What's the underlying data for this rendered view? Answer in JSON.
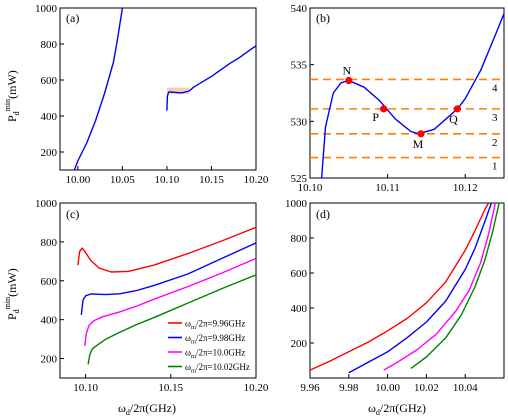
{
  "figure": {
    "y_label_main": "P",
    "y_label_sub": "d",
    "y_label_sup": "min",
    "y_label_unit": "(mW)",
    "x_label_main": "ω",
    "x_label_sub": "d",
    "x_label_unit": "/2π(GHz)"
  },
  "colors": {
    "blue": "#0000ff",
    "red": "#ff0000",
    "magenta": "#ff00ff",
    "green": "#008000",
    "orange": "#ff8000",
    "highlight": "#f4c49a",
    "point": "#ff0000"
  },
  "chart_data": [
    {
      "panel": "(a)",
      "type": "line",
      "xlim": [
        9.98,
        10.2
      ],
      "ylim": [
        100,
        1000
      ],
      "xticks": [
        10.0,
        10.05,
        10.1,
        10.15,
        10.2
      ],
      "xticklabels": [
        "10.00",
        "10.05",
        "10.10",
        "10.15",
        "10.20"
      ],
      "yticks": [
        200,
        400,
        600,
        800,
        1000
      ],
      "series": [
        {
          "color": "blue",
          "x": [
            9.996,
            10.0,
            10.01,
            10.02,
            10.03,
            10.04,
            10.045,
            10.05
          ],
          "y": [
            100,
            150,
            250,
            375,
            525,
            700,
            840,
            1000
          ]
        },
        {
          "color": "blue",
          "x": [
            10.1,
            10.1005,
            10.102,
            10.105,
            10.11,
            10.114,
            10.119,
            10.125,
            10.13,
            10.14,
            10.15,
            10.16,
            10.17,
            10.18,
            10.19,
            10.2
          ],
          "y": [
            430,
            510,
            533,
            533.6,
            531,
            529,
            531,
            539,
            560,
            590,
            620,
            655,
            690,
            720,
            755,
            790
          ]
        }
      ],
      "highlight_box": {
        "x": [
          10.1,
          10.125
        ],
        "y": [
          522,
          558
        ]
      }
    },
    {
      "panel": "(b)",
      "type": "line",
      "xlim": [
        10.1,
        10.125
      ],
      "ylim": [
        525,
        540
      ],
      "xticks": [
        10.1,
        10.11,
        10.12
      ],
      "xticklabels": [
        "10.10",
        "10.11",
        "10.12"
      ],
      "yticks": [
        525,
        530,
        535,
        540
      ],
      "series": [
        {
          "color": "blue",
          "x": [
            10.1015,
            10.102,
            10.103,
            10.104,
            10.105,
            10.107,
            10.109,
            10.111,
            10.113,
            10.114,
            10.116,
            10.118,
            10.119,
            10.12,
            10.122,
            10.124,
            10.125
          ],
          "y": [
            525,
            529.5,
            532.5,
            533.4,
            533.6,
            533.0,
            531.8,
            530.2,
            529.1,
            528.9,
            529.3,
            530.5,
            531.1,
            532.0,
            534.5,
            537.8,
            539.5
          ]
        }
      ],
      "hlines": [
        533.7,
        531.1,
        528.9,
        526.8
      ],
      "hline_labels": [
        "4",
        "3",
        "2",
        "1"
      ],
      "points": [
        {
          "label": "N",
          "x": 10.105,
          "y": 533.6
        },
        {
          "label": "P",
          "x": 10.1095,
          "y": 531.1
        },
        {
          "label": "M",
          "x": 10.1143,
          "y": 528.9
        },
        {
          "label": "Q",
          "x": 10.119,
          "y": 531.1
        }
      ]
    },
    {
      "panel": "(c)",
      "type": "line",
      "xlim": [
        10.085,
        10.2
      ],
      "ylim": [
        100,
        1000
      ],
      "xticks": [
        10.1,
        10.15,
        10.2
      ],
      "xticklabels": [
        "10.10",
        "10.15",
        "10.20"
      ],
      "yticks": [
        200,
        400,
        600,
        800,
        1000
      ],
      "legend": [
        {
          "label": "ω",
          "sub": "m",
          "rest": "/2π=9.96GHz",
          "color": "red"
        },
        {
          "label": "ω",
          "sub": "m",
          "rest": "/2π=9.98GHz",
          "color": "blue"
        },
        {
          "label": "ω",
          "sub": "m",
          "rest": "/2π=10.0GHz",
          "color": "magenta"
        },
        {
          "label": "ω",
          "sub": "m",
          "rest": "/2π=10.02GHz",
          "color": "green"
        }
      ],
      "legend_position": "lower-right",
      "series": [
        {
          "color": "red",
          "x": [
            10.0955,
            10.0965,
            10.098,
            10.1,
            10.103,
            10.108,
            10.115,
            10.125,
            10.14,
            10.16,
            10.18,
            10.2
          ],
          "y": [
            680,
            750,
            768,
            745,
            705,
            665,
            645,
            648,
            680,
            740,
            805,
            875
          ]
        },
        {
          "color": "blue",
          "x": [
            10.0975,
            10.0985,
            10.1,
            10.103,
            10.107,
            10.112,
            10.12,
            10.13,
            10.14,
            10.16,
            10.18,
            10.2
          ],
          "y": [
            425,
            500,
            523,
            532,
            531,
            529,
            533,
            550,
            575,
            635,
            715,
            795
          ]
        },
        {
          "color": "magenta",
          "x": [
            10.0995,
            10.1005,
            10.102,
            10.105,
            10.11,
            10.12,
            10.13,
            10.14,
            10.16,
            10.18,
            10.2
          ],
          "y": [
            265,
            330,
            370,
            395,
            415,
            440,
            470,
            505,
            570,
            640,
            715
          ]
        },
        {
          "color": "green",
          "x": [
            10.1015,
            10.1025,
            10.104,
            10.107,
            10.112,
            10.12,
            10.13,
            10.14,
            10.16,
            10.18,
            10.2
          ],
          "y": [
            170,
            220,
            250,
            270,
            300,
            335,
            375,
            410,
            485,
            560,
            630
          ]
        }
      ]
    },
    {
      "panel": "(d)",
      "type": "line",
      "xlim": [
        9.96,
        10.06
      ],
      "ylim": [
        0,
        1000
      ],
      "xticks": [
        9.96,
        9.98,
        10.0,
        10.02,
        10.04
      ],
      "xticklabels": [
        "9.96",
        "9.98",
        "10.00",
        "10.02",
        "10.04"
      ],
      "yticks": [
        200,
        400,
        600,
        800,
        1000
      ],
      "series": [
        {
          "color": "red",
          "x": [
            9.96,
            9.97,
            9.98,
            9.99,
            10.0,
            10.01,
            10.02,
            10.03,
            10.04,
            10.045,
            10.05,
            10.052
          ],
          "y": [
            45,
            95,
            150,
            205,
            270,
            340,
            430,
            550,
            730,
            840,
            960,
            1000
          ]
        },
        {
          "color": "blue",
          "x": [
            9.98,
            9.99,
            10.0,
            10.01,
            10.02,
            10.03,
            10.04,
            10.045,
            10.05,
            10.0535
          ],
          "y": [
            30,
            90,
            150,
            230,
            320,
            440,
            620,
            740,
            890,
            1000
          ]
        },
        {
          "color": "magenta",
          "x": [
            9.998,
            10.005,
            10.015,
            10.025,
            10.035,
            10.042,
            10.048,
            10.052,
            10.0555
          ],
          "y": [
            45,
            90,
            160,
            250,
            380,
            500,
            660,
            820,
            1000
          ]
        },
        {
          "color": "green",
          "x": [
            10.012,
            10.02,
            10.03,
            10.038,
            10.045,
            10.05,
            10.054,
            10.0575
          ],
          "y": [
            55,
            120,
            230,
            360,
            520,
            670,
            830,
            1000
          ]
        }
      ]
    }
  ]
}
